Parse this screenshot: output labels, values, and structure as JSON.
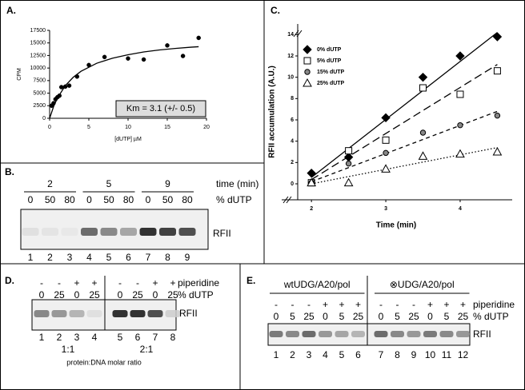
{
  "chart_data": [
    {
      "type": "scatter",
      "panel": "A.",
      "xlabel": "[dUTP] µM",
      "ylabel": "CPM",
      "annotation": "Km = 3.1 (+/- 0.5)",
      "xlim": [
        0,
        20
      ],
      "xticks": [
        0,
        5,
        10,
        15,
        20
      ],
      "ylim": [
        0,
        17500
      ],
      "yticks": [
        0,
        2500,
        5000,
        7500,
        10000,
        12500,
        15000,
        17500
      ],
      "series": [
        {
          "color": "#000000",
          "marker": "circle",
          "x": [
            0.25,
            0.5,
            0.75,
            1,
            1.25,
            1.5,
            2,
            2.5,
            3.5,
            5,
            7,
            10,
            12,
            15,
            17,
            19
          ],
          "values": [
            2500,
            3000,
            3800,
            4200,
            4500,
            6200,
            6300,
            6500,
            8300,
            10600,
            12200,
            11900,
            11700,
            14500,
            12400,
            16000
          ],
          "fit_x": [
            0,
            0.5,
            1,
            2,
            3,
            4,
            6,
            8,
            10,
            12,
            14,
            16,
            18,
            19
          ],
          "fit_values": [
            0,
            2300,
            4050,
            6500,
            8150,
            9350,
            10950,
            11950,
            12650,
            13200,
            13600,
            13900,
            14150,
            14250
          ],
          "line_style": "solid"
        }
      ]
    },
    {
      "type": "scatter",
      "panel": "C.",
      "xlabel": "Time (min)",
      "ylabel": "RFII accumulation (A.U.)",
      "xlim": [
        1.6,
        4.7
      ],
      "xticks": [
        2,
        3,
        4
      ],
      "ylim": [
        -1.5,
        15
      ],
      "yticks": [
        0,
        2,
        4,
        6,
        8,
        10,
        12,
        14
      ],
      "legend": "top-left",
      "series": [
        {
          "name": "0% dUTP",
          "color": "#000000",
          "marker": "diamond",
          "x": [
            2,
            2.5,
            3,
            3.5,
            4,
            4.5
          ],
          "values": [
            1,
            2.5,
            6.2,
            10,
            12,
            13.8
          ],
          "fit_x": [
            2,
            4.5
          ],
          "fit_values": [
            0.6,
            14.2
          ],
          "line_style": "solid"
        },
        {
          "name": "5% dUTP",
          "color": "#ffffff",
          "marker": "square",
          "x": [
            2,
            2.5,
            3,
            3.5,
            4,
            4.5
          ],
          "values": [
            0.1,
            3.1,
            4.1,
            9,
            8.4,
            10.6
          ],
          "fit_x": [
            2,
            4.5
          ],
          "fit_values": [
            0.4,
            11.2
          ],
          "line_style": "long-dash"
        },
        {
          "name": "15% dUTP",
          "color": "#888888",
          "marker": "circle",
          "x": [
            2,
            2.5,
            3,
            3.5,
            4,
            4.5
          ],
          "values": [
            0.1,
            1.9,
            2.9,
            4.8,
            5.5,
            6.4
          ],
          "fit_x": [
            2,
            4.5
          ],
          "fit_values": [
            0.2,
            6.8
          ],
          "line_style": "short-dash"
        },
        {
          "name": "25% dUTP",
          "color": "#ffffff",
          "marker": "triangle",
          "x": [
            2,
            2.5,
            3,
            3.5,
            4,
            4.5
          ],
          "values": [
            0.1,
            0.1,
            1.4,
            2.6,
            2.8,
            3
          ],
          "fit_x": [
            2,
            4.5
          ],
          "fit_values": [
            0,
            3.4
          ],
          "line_style": "dotted"
        }
      ]
    }
  ],
  "gels": {
    "b": {
      "panel": "B.",
      "times": [
        2,
        5,
        9
      ],
      "time_label": "time (min)",
      "dutp": [
        0,
        50,
        80,
        0,
        50,
        80,
        0,
        50,
        80
      ],
      "dutp_label": "% dUTP",
      "band": "RFII",
      "lanes": [
        1,
        2,
        3,
        4,
        5,
        6,
        7,
        8,
        9
      ]
    },
    "d": {
      "panel": "D.",
      "treatment": [
        "-",
        "-",
        "+",
        "+",
        "-",
        "-",
        "+",
        "+"
      ],
      "treatment_label": "piperidine",
      "dutp": [
        0,
        25,
        0,
        25,
        0,
        25,
        0,
        25
      ],
      "dutp_label": "% dUTP",
      "band": "RFII",
      "lanes": [
        1,
        2,
        3,
        4,
        5,
        6,
        7,
        8
      ],
      "ratios": [
        "1:1",
        "2:1"
      ],
      "ratio_label": "protein:DNA molar ratio"
    },
    "e": {
      "panel": "E.",
      "groups": [
        "wtUDG/A20/pol",
        "⊗UDG/A20/pol"
      ],
      "treatment": [
        "-",
        "-",
        "-",
        "+",
        "+",
        "+",
        "-",
        "-",
        "-",
        "+",
        "+",
        "+"
      ],
      "treatment_label": "piperidine",
      "dutp": [
        0,
        5,
        25,
        0,
        5,
        25,
        0,
        5,
        25,
        0,
        5,
        25
      ],
      "dutp_label": "% dUTP",
      "band": "RFII",
      "lanes": [
        1,
        2,
        3,
        4,
        5,
        6,
        7,
        8,
        9,
        10,
        11,
        12
      ]
    }
  }
}
